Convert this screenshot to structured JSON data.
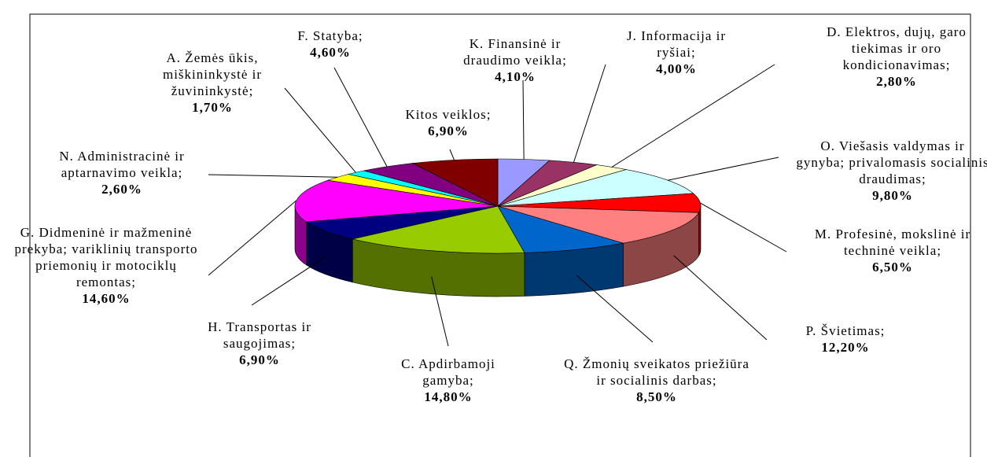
{
  "chart_data": {
    "type": "pie",
    "categories": [
      "K. Finansinė ir draudimo veikla;",
      "J. Informacija ir ryšiai;",
      "D. Elektros, dujų, garo tiekimas ir oro kondicionavimas;",
      "O. Viešasis valdymas ir gynyba; privalomasis socialinis draudimas;",
      "M. Profesinė, mokslinė ir techninė veikla;",
      "P. Švietimas;",
      "Q. Žmonių sveikatos priežiūra ir socialinis darbas;",
      "C. Apdirbamoji gamyba;",
      "H. Transportas ir saugojimas;",
      "G. Didmeninė ir mažmeninė prekyba; variklinių transporto priemonių ir motociklų remontas;",
      "N. Administracinė ir aptarnavimo veikla;",
      "A. Žemės ūkis, miškininkystė ir žuvininkystė;",
      "F. Statyba;",
      "Kitos veiklos;"
    ],
    "values": [
      4.1,
      4.0,
      2.8,
      9.8,
      6.5,
      12.2,
      8.5,
      14.8,
      6.9,
      14.6,
      2.6,
      1.7,
      4.6,
      6.9
    ],
    "value_labels": [
      "4,10%",
      "4,00%",
      "2,80%",
      "9,80%",
      "6,50%",
      "12,20%",
      "8,50%",
      "14,80%",
      "6,90%",
      "14,60%",
      "2,60%",
      "1,70%",
      "4,60%",
      "6,90%"
    ],
    "colors": [
      "#9999ff",
      "#993366",
      "#ffffcc",
      "#ccffff",
      "#ff0000",
      "#ff8080",
      "#0066cc",
      "#99cc00",
      "#000080",
      "#ff00ff",
      "#ffff00",
      "#00ffff",
      "#800080",
      "#800000"
    ]
  }
}
